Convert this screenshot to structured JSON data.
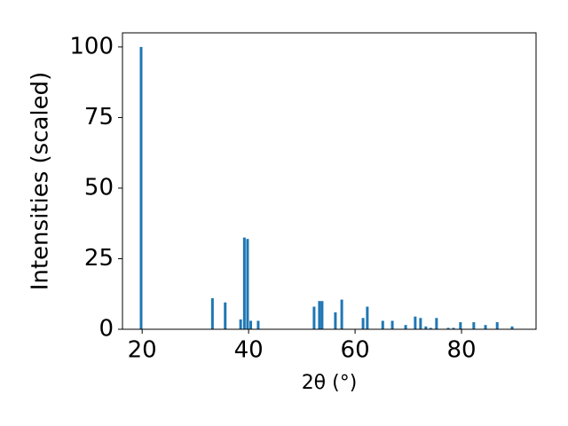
{
  "chart_data": {
    "type": "bar",
    "x_label": "2θ (°)",
    "y_label": "Intensities (scaled)",
    "x": [
      19.8,
      33.2,
      35.6,
      38.5,
      39.2,
      39.8,
      40.4,
      41.8,
      52.3,
      53.3,
      53.8,
      56.3,
      57.5,
      61.5,
      62.3,
      65.2,
      67.0,
      69.5,
      71.3,
      72.3,
      73.3,
      74.2,
      75.3,
      77.5,
      78.5,
      79.8,
      82.3,
      84.5,
      86.7,
      89.5
    ],
    "values": [
      100,
      11,
      9.5,
      3.5,
      32.5,
      32,
      3,
      3,
      8,
      10,
      10,
      6,
      10.5,
      4,
      8,
      3,
      3,
      1.5,
      4.5,
      4,
      1,
      0.5,
      4,
      0.5,
      0.5,
      2.5,
      2.5,
      1.5,
      2.5,
      1
    ],
    "color": "#1f77b4",
    "xlim": [
      16.3,
      94
    ],
    "xticks": [
      20,
      40,
      60,
      80
    ],
    "ylim": [
      0,
      105
    ],
    "yticks": [
      0,
      25,
      50,
      75,
      100
    ]
  }
}
